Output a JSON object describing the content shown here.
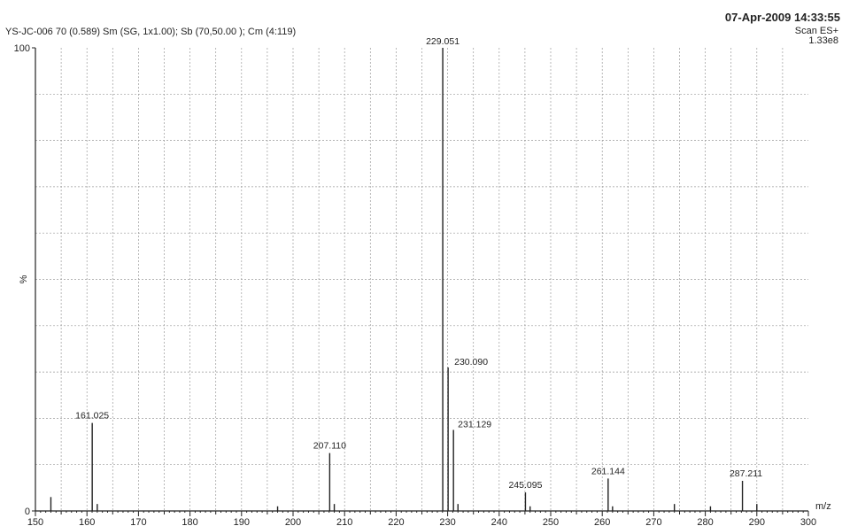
{
  "header": {
    "sample": "YS-JC-006  70 (0.589) Sm (SG, 1x1.00); Sb (70,50.00 ); Cm (4:119)",
    "date": "07-Apr-2009  14:33:55",
    "scan": "Scan ES+",
    "intensity": "1.33e8"
  },
  "chart_data": {
    "type": "bar",
    "title": "",
    "xlabel": "m/z",
    "ylabel": "%",
    "xlim": [
      150,
      300
    ],
    "ylim": [
      0,
      100
    ],
    "x_ticks": [
      150,
      160,
      170,
      180,
      190,
      200,
      210,
      220,
      230,
      240,
      250,
      260,
      270,
      280,
      290,
      300
    ],
    "y_ticks": [
      0,
      100
    ],
    "grid": true,
    "series": [
      {
        "peaks": [
          {
            "x": 153.0,
            "y": 3
          },
          {
            "x": 161.025,
            "y": 19,
            "label": "161.025"
          },
          {
            "x": 162.0,
            "y": 1.5
          },
          {
            "x": 197.0,
            "y": 1
          },
          {
            "x": 207.11,
            "y": 12.5,
            "label": "207.110"
          },
          {
            "x": 208.0,
            "y": 1.5
          },
          {
            "x": 229.051,
            "y": 100,
            "label": "229.051"
          },
          {
            "x": 230.09,
            "y": 31,
            "label": "230.090"
          },
          {
            "x": 231.129,
            "y": 17.5,
            "label": "231.129"
          },
          {
            "x": 232.0,
            "y": 1.5
          },
          {
            "x": 245.095,
            "y": 4,
            "label": "245.095"
          },
          {
            "x": 246.0,
            "y": 1
          },
          {
            "x": 261.144,
            "y": 7,
            "label": "261.144"
          },
          {
            "x": 262.0,
            "y": 1
          },
          {
            "x": 274.0,
            "y": 1.5
          },
          {
            "x": 281.0,
            "y": 1
          },
          {
            "x": 287.211,
            "y": 6.5,
            "label": "287.211"
          },
          {
            "x": 290.0,
            "y": 1.5
          }
        ]
      }
    ]
  }
}
